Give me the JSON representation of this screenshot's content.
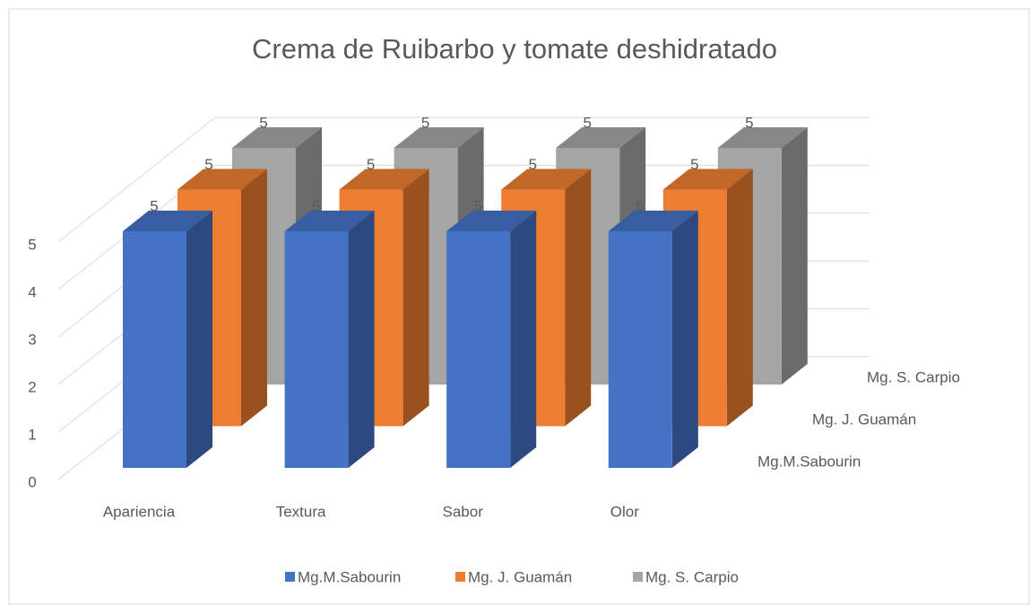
{
  "chart_data": {
    "type": "bar3d",
    "title": "Crema de Ruibarbo y tomate deshidratado",
    "categories": [
      "Apariencia",
      "Textura",
      "Sabor",
      "Olor"
    ],
    "series": [
      {
        "name": "Mg.M.Sabourin",
        "color": "#4472c4",
        "values": [
          5,
          5,
          5,
          5
        ]
      },
      {
        "name": "Mg. J. Guamán",
        "color": "#ed7d31",
        "values": [
          5,
          5,
          5,
          5
        ]
      },
      {
        "name": "Mg. S. Carpio",
        "color": "#a5a5a5",
        "values": [
          5,
          5,
          5,
          5
        ]
      }
    ],
    "ylim": [
      0,
      5
    ],
    "yticks": [
      0,
      1,
      2,
      3,
      4,
      5
    ],
    "grid": true,
    "legend": "bottom",
    "data_labels": true
  }
}
